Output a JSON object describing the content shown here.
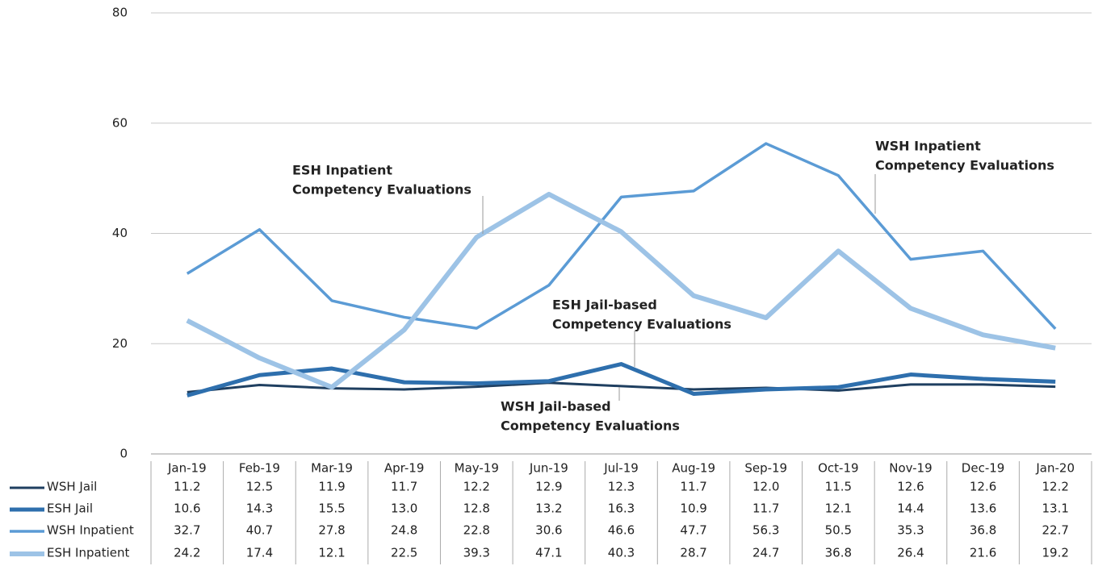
{
  "chart_data": {
    "type": "line",
    "categories": [
      "Jan-19",
      "Feb-19",
      "Mar-19",
      "Apr-19",
      "May-19",
      "Jun-19",
      "Jul-19",
      "Aug-19",
      "Sep-19",
      "Oct-19",
      "Nov-19",
      "Dec-19",
      "Jan-20"
    ],
    "series": [
      {
        "name": "WSH Jail",
        "color": "#1f3f60",
        "values": [
          11.2,
          12.5,
          11.9,
          11.7,
          12.2,
          12.9,
          12.3,
          11.7,
          12.0,
          11.5,
          12.6,
          12.6,
          12.2
        ],
        "value_labels": [
          "11.2",
          "12.5",
          "11.9",
          "11.7",
          "12.2",
          "12.9",
          "12.3",
          "11.7",
          "12.0",
          "11.5",
          "12.6",
          "12.6",
          "12.2"
        ]
      },
      {
        "name": "ESH Jail",
        "color": "#2e6fad",
        "values": [
          10.6,
          14.3,
          15.5,
          13.0,
          12.8,
          13.2,
          16.3,
          10.9,
          11.7,
          12.1,
          14.4,
          13.6,
          13.1
        ],
        "value_labels": [
          "10.6",
          "14.3",
          "15.5",
          "13.0",
          "12.8",
          "13.2",
          "16.3",
          "10.9",
          "11.7",
          "12.1",
          "14.4",
          "13.6",
          "13.1"
        ]
      },
      {
        "name": "WSH Inpatient",
        "color": "#5b9bd5",
        "values": [
          32.7,
          40.7,
          27.8,
          24.8,
          22.8,
          30.6,
          46.6,
          47.7,
          56.3,
          50.5,
          35.3,
          36.8,
          22.7
        ],
        "value_labels": [
          "32.7",
          "40.7",
          "27.8",
          "24.8",
          "22.8",
          "30.6",
          "46.6",
          "47.7",
          "56.3",
          "50.5",
          "35.3",
          "36.8",
          "22.7"
        ]
      },
      {
        "name": "ESH Inpatient",
        "color": "#9dc3e6",
        "values": [
          24.2,
          17.4,
          12.1,
          22.5,
          39.3,
          47.1,
          40.3,
          28.7,
          24.7,
          36.8,
          26.4,
          21.6,
          19.2
        ],
        "value_labels": [
          "24.2",
          "17.4",
          "12.1",
          "22.5",
          "39.3",
          "47.1",
          "40.3",
          "28.7",
          "24.7",
          "36.8",
          "26.4",
          "21.6",
          "19.2"
        ]
      }
    ],
    "annotations": [
      {
        "lines": [
          "WSH Jail-based",
          "Competency Evaluations"
        ]
      },
      {
        "lines": [
          "ESH Jail-based",
          "Competency Evaluations"
        ]
      },
      {
        "lines": [
          "WSH Inpatient",
          "Competency Evaluations"
        ]
      },
      {
        "lines": [
          "ESH Inpatient",
          "Competency Evaluations"
        ]
      }
    ],
    "ylim": [
      0,
      80
    ],
    "yticks": [
      0,
      20,
      40,
      60,
      80
    ],
    "grid": true
  }
}
